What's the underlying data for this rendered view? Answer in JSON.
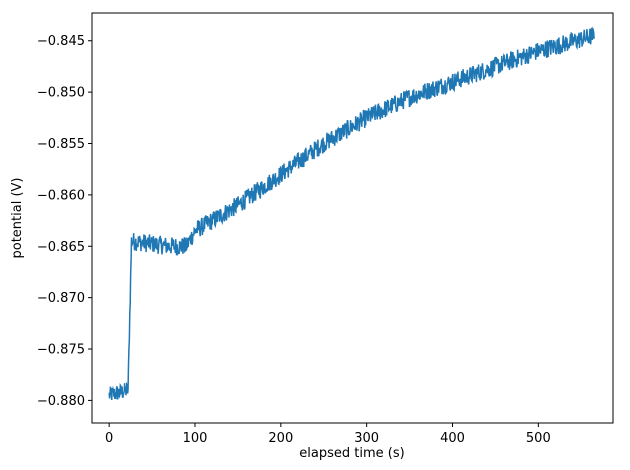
{
  "chart_data": {
    "type": "line",
    "title": "",
    "xlabel": "elapsed time (s)",
    "ylabel": "potential (V)",
    "xlim": [
      -20,
      587
    ],
    "ylim": [
      -0.8822,
      -0.8423
    ],
    "xticks": [
      0,
      100,
      200,
      300,
      400,
      500
    ],
    "xtick_labels": [
      "0",
      "100",
      "200",
      "300",
      "400",
      "500"
    ],
    "yticks": [
      -0.88,
      -0.875,
      -0.87,
      -0.865,
      -0.86,
      -0.855,
      -0.85,
      -0.845
    ],
    "ytick_labels": [
      "−0.880",
      "−0.875",
      "−0.870",
      "−0.865",
      "−0.860",
      "−0.855",
      "−0.850",
      "−0.845"
    ],
    "grid": false,
    "series": [
      {
        "name": "potential",
        "color": "#1f77b4",
        "x_start": 0,
        "x_end": 565,
        "points": 1130,
        "trend": [
          [
            0,
            -0.8795
          ],
          [
            22,
            -0.879
          ],
          [
            26,
            -0.8645
          ],
          [
            70,
            -0.865
          ],
          [
            90,
            -0.865
          ],
          [
            100,
            -0.8635
          ],
          [
            150,
            -0.861
          ],
          [
            200,
            -0.858
          ],
          [
            250,
            -0.855
          ],
          [
            300,
            -0.8525
          ],
          [
            350,
            -0.8505
          ],
          [
            400,
            -0.849
          ],
          [
            450,
            -0.8475
          ],
          [
            500,
            -0.846
          ],
          [
            565,
            -0.8445
          ]
        ],
        "noise_amplitude": 0.0009
      }
    ]
  }
}
